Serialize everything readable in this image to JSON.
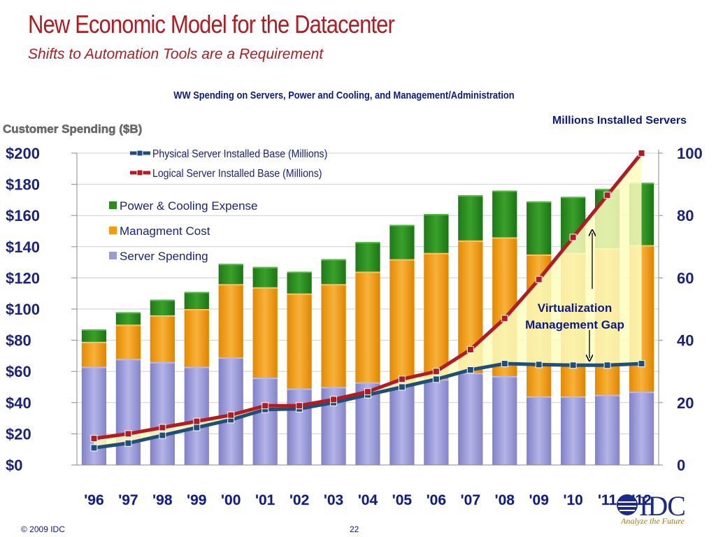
{
  "slide": {
    "title": "New Economic Model for the Datacenter",
    "subtitle": "Shifts to Automation Tools are a Requirement",
    "copyright": "© 2009 IDC",
    "page_number": "22",
    "logo_text": "IDC",
    "logo_tagline": "Analyze the Future"
  },
  "chart_data": {
    "type": "bar",
    "stacked": true,
    "title": "WW Spending on Servers, Power and Cooling, and Management/Administration",
    "ylabel": "Customer Spending ($B)",
    "y2label": "Millions Installed Servers",
    "ylim": [
      0,
      200
    ],
    "y2lim": [
      0,
      100
    ],
    "yticks": [
      "$0",
      "$20",
      "$40",
      "$60",
      "$80",
      "$100",
      "$120",
      "$140",
      "$160",
      "$180",
      "$200"
    ],
    "y2ticks": [
      "0",
      "20",
      "40",
      "60",
      "80",
      "100"
    ],
    "categories": [
      "'96",
      "'97",
      "'98",
      "'99",
      "'00",
      "'01",
      "'02",
      "'03",
      "'04",
      "'05",
      "'06",
      "'07",
      "'08",
      "'09",
      "'10",
      "'11",
      "'12"
    ],
    "series": [
      {
        "name": "Server Spending",
        "color": "#9b9bd6",
        "values": [
          63,
          68,
          66,
          63,
          69,
          56,
          49,
          50,
          53,
          52,
          55,
          59,
          57,
          44,
          44,
          45,
          47
        ]
      },
      {
        "name": "Managment Cost",
        "color": "#f39c12",
        "values": [
          16,
          22,
          30,
          37,
          47,
          58,
          61,
          66,
          71,
          80,
          81,
          85,
          89,
          91,
          92,
          94,
          94
        ]
      },
      {
        "name": "Power & Cooling Expense",
        "color": "#2e8b22",
        "values": [
          8,
          8,
          10,
          11,
          13,
          13,
          14,
          16,
          19,
          22,
          25,
          29,
          30,
          34,
          36,
          38,
          40
        ]
      }
    ],
    "lines": [
      {
        "name": "Physical Server Installed Base (Millions)",
        "color": "#1f4e79",
        "axis": "right",
        "values": [
          5.5,
          7,
          9.5,
          12,
          14.5,
          17.8,
          18,
          20,
          22.5,
          25,
          27.5,
          30.5,
          32.5,
          32.2,
          32,
          32,
          32.5
        ]
      },
      {
        "name": "Logical Server Installed Base (Millions)",
        "color": "#b01c22",
        "axis": "right",
        "values": [
          8.5,
          10,
          12,
          14,
          16,
          19,
          19,
          21,
          23.5,
          27.5,
          30,
          37,
          47,
          59.5,
          73,
          86.5,
          100
        ]
      }
    ],
    "annotation": {
      "text_line1": "Virtualization",
      "text_line2": "Management Gap"
    },
    "legend_placement": "top-left"
  }
}
